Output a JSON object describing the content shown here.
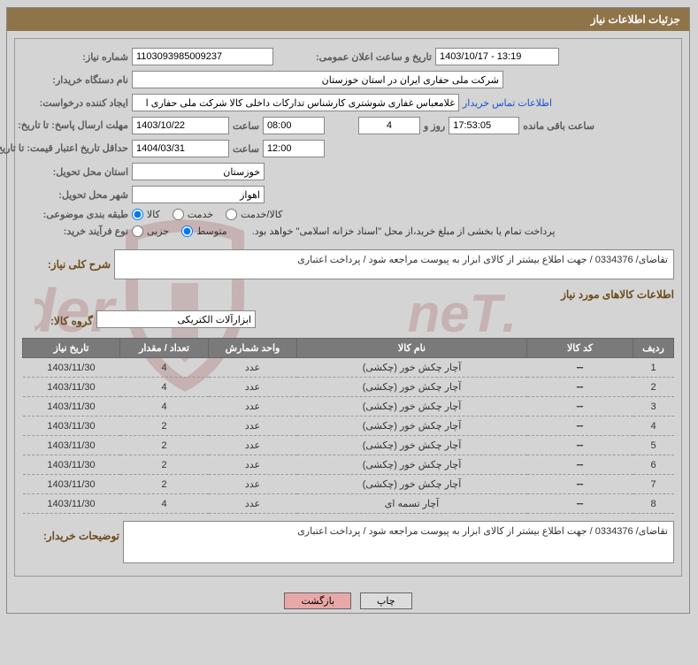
{
  "header": {
    "title": "جزئیات اطلاعات نیاز"
  },
  "labels": {
    "need_no": "شماره نیاز:",
    "ann_date": "تاریخ و ساعت اعلان عمومی:",
    "buyer_org": "نام دستگاه خریدار:",
    "requester": "ایجاد کننده درخواست:",
    "reply_deadline": "مهلت ارسال پاسخ: تا تاریخ:",
    "hour": "ساعت",
    "days_and": "روز و",
    "remaining": "ساعت باقی مانده",
    "min_valid": "حداقل تاریخ اعتبار قیمت: تا تاریخ:",
    "delivery_province": "استان محل تحویل:",
    "delivery_city": "شهر محل تحویل:",
    "subject_class": "طبقه بندی موضوعی:",
    "buy_process": "نوع فرآیند خرید:",
    "pay_note": "پرداخت تمام یا بخشی از مبلغ خرید،از محل \"اسناد خزانه اسلامی\" خواهد بود.",
    "overall_desc": "شرح کلی نیاز:",
    "items_info": "اطلاعات کالاهای مورد نیاز",
    "item_group": "گروه کالا:",
    "buyer_remarks": "توضیحات خریدار:",
    "contact": "اطلاعات تماس خریدار"
  },
  "values": {
    "need_no": "1103093985009237",
    "ann_date": "1403/10/17 - 13:19",
    "buyer_org": "شرکت ملی حفاری ایران در استان خوزستان",
    "requester": "غلامعباس غفاری شوشتری کارشناس تدارکات داخلی کالا شرکت ملی حفاری ا",
    "reply_date": "1403/10/22",
    "reply_time": "08:00",
    "days": "4",
    "remain_time": "17:53:05",
    "min_valid_date": "1404/03/31",
    "min_valid_time": "12:00",
    "province": "خوزستان",
    "city": "اهواز",
    "overall_desc": "تقاضای/ 0334376 / جهت اطلاع بیشتر از کالای  ابزار  به پیوست مراجعه شود / پرداخت اعتباری",
    "item_group": "ابزارآلات الکتریکی",
    "buyer_remarks": "تقاضای/ 0334376 / جهت اطلاع بیشتر از کالای  ابزار  به پیوست مراجعه شود / پرداخت اعتباری"
  },
  "radios": {
    "subject": {
      "opts": [
        "کالا",
        "خدمت",
        "کالا/خدمت"
      ],
      "selected": 0
    },
    "process": {
      "opts": [
        "جزیی",
        "متوسط"
      ],
      "selected": 1
    }
  },
  "table": {
    "headers": [
      "ردیف",
      "کد کالا",
      "نام کالا",
      "واحد شمارش",
      "تعداد / مقدار",
      "تاریخ نیاز"
    ],
    "col_widths": [
      "46px",
      "120px",
      "auto",
      "100px",
      "100px",
      "110px"
    ],
    "rows": [
      [
        "1",
        "--",
        "آچار چکش خور (چکشی)",
        "عدد",
        "4",
        "1403/11/30"
      ],
      [
        "2",
        "--",
        "آچار چکش خور (چکشی)",
        "عدد",
        "4",
        "1403/11/30"
      ],
      [
        "3",
        "--",
        "آچار چکش خور (چکشی)",
        "عدد",
        "4",
        "1403/11/30"
      ],
      [
        "4",
        "--",
        "آچار چکش خور (چکشی)",
        "عدد",
        "2",
        "1403/11/30"
      ],
      [
        "5",
        "--",
        "آچار چکش خور (چکشی)",
        "عدد",
        "2",
        "1403/11/30"
      ],
      [
        "6",
        "--",
        "آچار چکش خور (چکشی)",
        "عدد",
        "2",
        "1403/11/30"
      ],
      [
        "7",
        "--",
        "آچار چکش خور (چکشی)",
        "عدد",
        "2",
        "1403/11/30"
      ],
      [
        "8",
        "--",
        "آچار تسمه ای",
        "عدد",
        "4",
        "1403/11/30"
      ]
    ],
    "strike_code": true
  },
  "buttons": {
    "print": "چاپ",
    "back": "بازگشت"
  },
  "watermark": {
    "text1": "AriaTender",
    "text2": ".neT"
  },
  "colors": {
    "header_bg": "#8f744a",
    "page_bg": "#d4d4d4",
    "th_bg": "#7a7a7a",
    "section_title": "#6b4a1a",
    "btn_back_bg": "#e8a8a8",
    "link": "#1a4fd6",
    "watermark": "#8a1f1f"
  }
}
